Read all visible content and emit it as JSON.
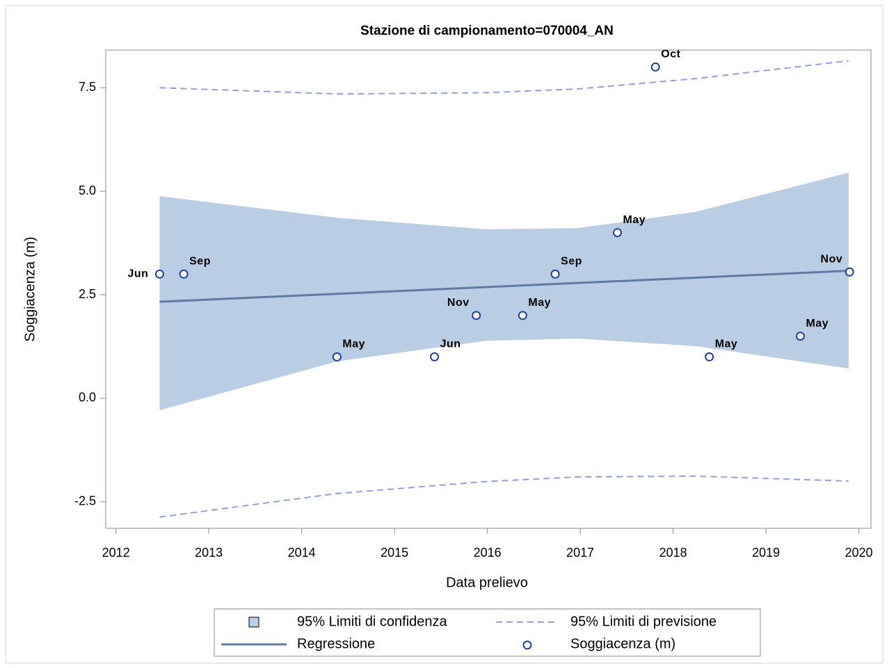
{
  "chart_data": {
    "type": "scatter",
    "title": "Stazione di campionamento=070004_AN",
    "x_label": "Data prelievo",
    "y_label": "Soggiacenza (m)",
    "xlim": [
      2011.89,
      2020.13
    ],
    "xticks": [
      2012,
      2013,
      2014,
      2015,
      2016,
      2017,
      2018,
      2019,
      2020
    ],
    "ylim": [
      -3.14,
      8.41
    ],
    "yticks": [
      -2.5,
      {
        "value": 0,
        "label": "0.0"
      },
      2.5,
      {
        "value": 5,
        "label": "5.0"
      },
      7.5
    ],
    "confidence": {
      "name": "95% Limiti di confidenza",
      "color": "#b9cde5",
      "x": [
        2012.47,
        2014.38,
        2015.99,
        2016.97,
        2018.24,
        2019.89
      ],
      "upper": [
        4.88,
        4.36,
        4.08,
        4.11,
        4.5,
        5.45
      ],
      "lower": [
        -0.29,
        0.89,
        1.39,
        1.44,
        1.26,
        0.72
      ]
    },
    "prediction": {
      "name": "95% Limiti di previsione",
      "color": "#8da2dc",
      "x": [
        2012.47,
        2014.38,
        2015.99,
        2016.97,
        2018.24,
        2019.89
      ],
      "upper": [
        7.5,
        7.35,
        7.38,
        7.47,
        7.72,
        8.15
      ],
      "lower": [
        -2.87,
        -2.3,
        -2.01,
        -1.9,
        -1.88,
        -2.0
      ]
    },
    "regression": {
      "name": "Regressione",
      "color": "#5f7aa1",
      "x": [
        2012.47,
        2019.9
      ],
      "values": [
        2.33,
        3.08
      ]
    },
    "points": {
      "name": "Soggiacenza (m)",
      "color": "#1f3f9f",
      "x": [
        2012.47,
        2012.73,
        2014.38,
        2015.43,
        2015.88,
        2016.38,
        2016.73,
        2017.4,
        2017.81,
        2018.39,
        2019.37,
        2019.9
      ],
      "values": [
        3.0,
        3.0,
        1.0,
        1.0,
        2.0,
        2.0,
        3.0,
        4.0,
        8.0,
        1.0,
        1.5,
        3.05
      ],
      "labels": [
        "Jun",
        "Sep",
        "May",
        "Jun",
        "Nov",
        "May",
        "Sep",
        "May",
        "Oct",
        "May",
        "May",
        "Nov"
      ]
    }
  }
}
